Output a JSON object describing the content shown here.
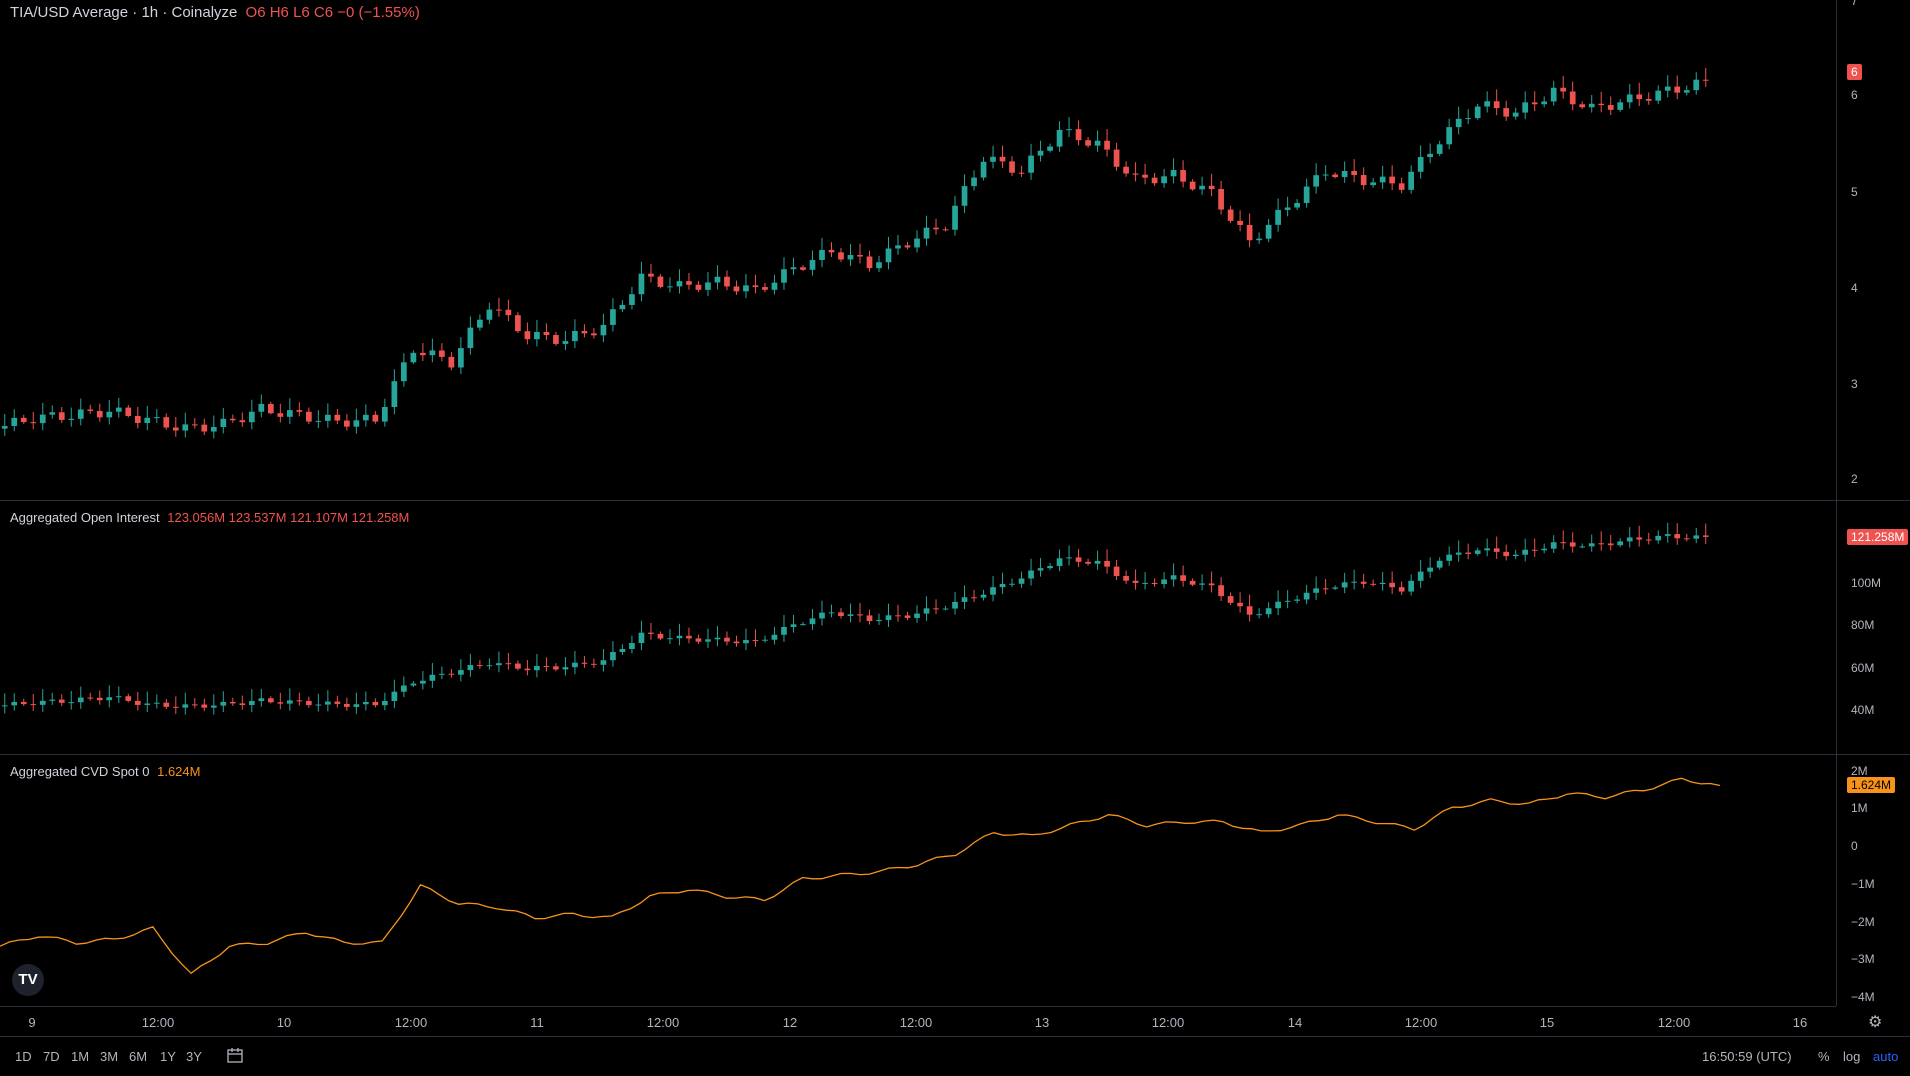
{
  "price_pane": {
    "symbol": "TIA/USD Average",
    "interval": "1h",
    "source": "Coinalyze",
    "ohlc_text": "O6 H6 L6 C6 −0 (−1.55%)",
    "last_value": "6",
    "ticks": [
      "7",
      "6",
      "5",
      "4",
      "3",
      "2"
    ]
  },
  "oi_pane": {
    "title": "Aggregated Open Interest",
    "values_text": "123.056M  123.537M  121.107M  121.258M",
    "last_value": "121.258M",
    "ticks": [
      "100M",
      "80M",
      "60M",
      "40M"
    ]
  },
  "cvd_pane": {
    "title": "Aggregated CVD Spot 0",
    "value_text": "1.624M",
    "last_value": "1.624M",
    "ticks": [
      "2M",
      "1M",
      "0",
      "−1M",
      "−2M",
      "−3M",
      "−4M"
    ]
  },
  "time_axis": [
    "9",
    "12:00",
    "10",
    "12:00",
    "11",
    "12:00",
    "12",
    "12:00",
    "13",
    "12:00",
    "14",
    "12:00",
    "15",
    "12:00",
    "16"
  ],
  "bottom_bar": {
    "ranges": [
      "1D",
      "7D",
      "1M",
      "3M",
      "6M",
      "1Y",
      "3Y"
    ],
    "clock": "16:50:59 (UTC)",
    "percent": "%",
    "log": "log",
    "auto": "auto"
  },
  "logo_text": "TV",
  "colors": {
    "up": "#26a69a",
    "down": "#ef5350",
    "cvd": "#f7931a",
    "background": "#000000"
  },
  "icons": {
    "calendar": "calendar-icon",
    "settings": "gear-icon",
    "logo": "tradingview-logo-icon"
  },
  "chart_data": [
    {
      "type": "candlestick",
      "title": "TIA/USD Average · 1h · Coinalyze",
      "ylim": [
        1.8,
        7
      ],
      "x_range": [
        "9",
        "16"
      ],
      "series": [
        {
          "name": "TIA/USD",
          "close_approx": [
            2.4,
            2.52,
            2.55,
            2.6,
            2.5,
            2.4,
            2.45,
            2.62,
            2.55,
            2.48,
            2.5,
            3.3,
            3.15,
            3.8,
            3.45,
            3.4,
            3.55,
            4.1,
            4.0,
            4.05,
            3.95,
            4.2,
            4.4,
            4.25,
            4.5,
            4.7,
            5.45,
            5.3,
            5.75,
            5.6,
            5.2,
            5.25,
            5.05,
            4.5,
            4.9,
            5.3,
            5.2,
            5.15,
            5.65,
            6.05,
            5.95,
            6.2,
            6.0,
            6.1,
            6.2,
            6.3
          ]
        }
      ]
    },
    {
      "type": "candlestick",
      "title": "Aggregated Open Interest",
      "ylim": [
        20,
        130
      ],
      "series": [
        {
          "name": "Open Interest",
          "close_approx": [
            32,
            34,
            35,
            37,
            33,
            32,
            33,
            35,
            34,
            33,
            33,
            45,
            50,
            55,
            52,
            53,
            56,
            70,
            68,
            67,
            66,
            75,
            82,
            78,
            80,
            85,
            92,
            100,
            110,
            108,
            96,
            100,
            95,
            80,
            88,
            95,
            98,
            94,
            110,
            115,
            112,
            118,
            117,
            120,
            122,
            121
          ]
        }
      ]
    },
    {
      "type": "line",
      "title": "Aggregated CVD Spot 0",
      "ylim": [
        -4.3,
        2.2
      ],
      "series": [
        {
          "name": "CVD",
          "values": [
            -2.9,
            -2.6,
            -2.8,
            -2.7,
            -2.4,
            -3.7,
            -2.9,
            -2.8,
            -2.5,
            -2.8,
            -2.8,
            -1.2,
            -1.7,
            -1.8,
            -2.1,
            -2.0,
            -2.1,
            -1.5,
            -1.3,
            -1.5,
            -1.6,
            -1.0,
            -0.9,
            -0.8,
            -0.6,
            -0.3,
            0.3,
            0.2,
            0.5,
            0.8,
            0.5,
            0.6,
            0.6,
            0.3,
            0.5,
            0.8,
            0.6,
            0.4,
            1.0,
            1.2,
            1.1,
            1.4,
            1.3,
            1.5,
            1.8,
            1.624
          ]
        }
      ]
    }
  ]
}
